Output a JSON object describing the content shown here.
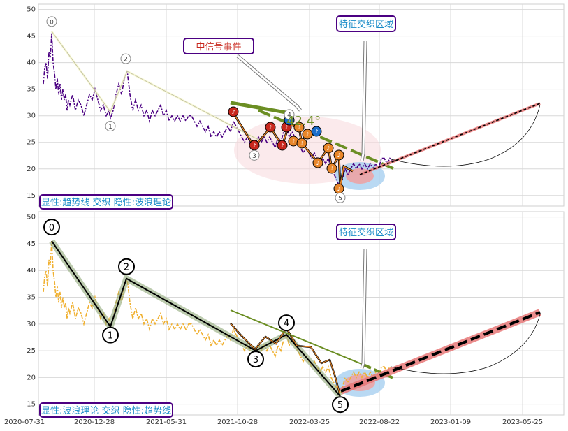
{
  "chart_data": [
    {
      "type": "line",
      "panel": "top",
      "ylim": [
        13,
        51
      ],
      "yticks": [
        "15",
        "20",
        "25",
        "30",
        "35",
        "40",
        "45",
        "50"
      ],
      "yvals": [
        15,
        20,
        25,
        30,
        35,
        40,
        45,
        50
      ],
      "grid": true,
      "colors": {
        "price": "#4b0082",
        "trend": "#6b8e23",
        "signal": "#c8281e",
        "fib": "#e8862a"
      },
      "annotations": {
        "signal_box": "中信号事件",
        "feature_box": "特征交织区域",
        "angle": "42.4°",
        "panel_box": "显性:趋势线 交织 隐性:波浪理论"
      },
      "wave_labels": [
        "0",
        "1",
        "2",
        "3",
        "4",
        "5"
      ],
      "note_glyph": "♪"
    },
    {
      "type": "line",
      "panel": "bottom",
      "ylim": [
        13,
        51
      ],
      "yticks": [
        "15",
        "20",
        "25",
        "30",
        "35",
        "40",
        "45",
        "50"
      ],
      "yvals": [
        15,
        20,
        25,
        30,
        35,
        40,
        45,
        50
      ],
      "xticks": [
        "2020-07-31",
        "2020-12-28",
        "2021-05-31",
        "2021-10-28",
        "2022-03-25",
        "2022-08-22",
        "2023-01-09",
        "2023-05-25"
      ],
      "grid": true,
      "colors": {
        "price": "#f0b030",
        "wave": "#000000",
        "band": "#8fa878",
        "forecast": "#e87878"
      },
      "wave_points": [
        {
          "label": "0",
          "price": 45.5
        },
        {
          "label": "1",
          "price": 29.5
        },
        {
          "label": "2",
          "price": 38.5
        },
        {
          "label": "3",
          "price": 25.0
        },
        {
          "label": "4",
          "price": 28.0
        },
        {
          "label": "5",
          "price": 16.5
        }
      ],
      "annotations": {
        "feature_box": "特征交织区域",
        "panel_box": "显性:波浪理论 交织 隐性:趋势线"
      }
    }
  ]
}
